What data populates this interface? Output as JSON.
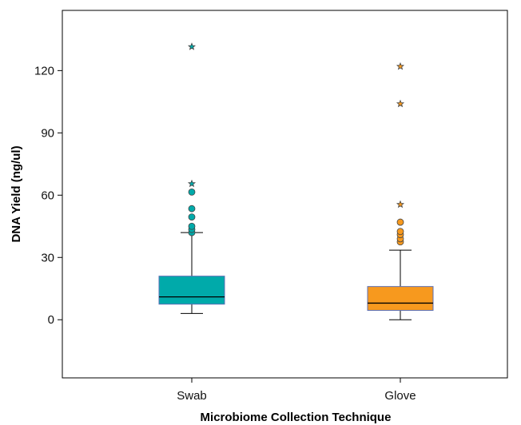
{
  "chart_data": {
    "type": "box",
    "title": "",
    "xlabel": "Microbiome Collection Technique",
    "ylabel": "DNA Yield (ng/ul)",
    "ylim": [
      -28,
      149
    ],
    "yticks": [
      0,
      30,
      60,
      90,
      120
    ],
    "grid": false,
    "categories": [
      "Swab",
      "Glove"
    ],
    "boxes": [
      {
        "category": "Swab",
        "color": "#00AAAA",
        "whisker_low": 3,
        "q1": 7.5,
        "median": 11,
        "q3": 21,
        "whisker_high": 42,
        "outliers_circle": [
          42,
          43.5,
          45,
          49.5,
          53.5,
          61.5
        ],
        "outliers_extreme": [
          65.5,
          131.5
        ]
      },
      {
        "category": "Glove",
        "color": "#F7991E",
        "whisker_low": 0,
        "q1": 4.5,
        "median": 8,
        "q3": 16,
        "whisker_high": 33.5,
        "outliers_circle": [
          37.5,
          39,
          41,
          42.5,
          47
        ],
        "outliers_extreme": [
          55.5,
          104,
          122
        ]
      }
    ]
  }
}
